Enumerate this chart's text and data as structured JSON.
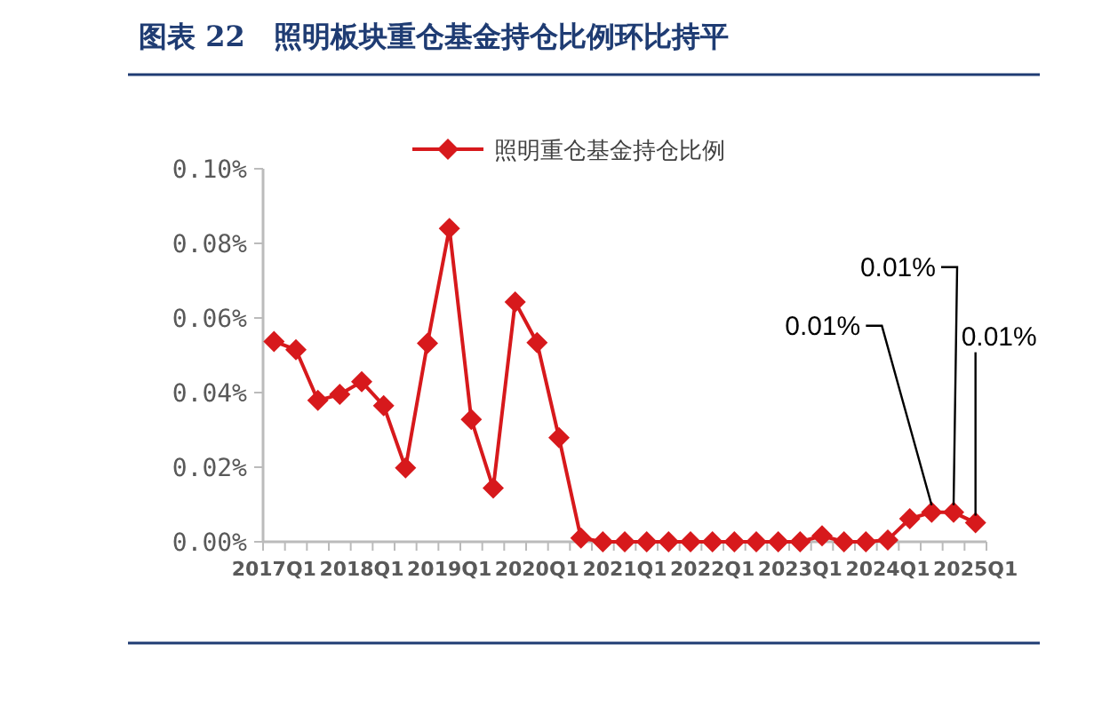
{
  "chart_data": {
    "type": "line",
    "title": "图表 22　照明板块重仓基金持仓比例环比持平",
    "categories": [
      "2017Q1",
      null,
      null,
      null,
      "2018Q1",
      null,
      null,
      null,
      "2019Q1",
      null,
      null,
      null,
      "2020Q1",
      null,
      null,
      null,
      "2021Q1",
      null,
      null,
      null,
      "2022Q1",
      null,
      null,
      null,
      "2023Q1",
      null,
      null,
      null,
      "2024Q1",
      null,
      null,
      null,
      "2025Q1"
    ],
    "series": [
      {
        "name": "照明重仓基金持仓比例",
        "color": "#d7191c",
        "values": [
          0.0537,
          0.0515,
          0.0379,
          0.0395,
          0.0429,
          0.0365,
          0.0198,
          0.0532,
          0.084,
          0.0328,
          0.0144,
          0.0643,
          0.0534,
          0.0279,
          0.001,
          0,
          0,
          0,
          0,
          0,
          0,
          0,
          0,
          0,
          0,
          0.0016,
          0,
          0,
          0.0005,
          0.0062,
          0.0079,
          0.0079,
          0.0051
        ],
        "value_labels": [
          null,
          null,
          null,
          null,
          null,
          null,
          null,
          null,
          null,
          null,
          null,
          null,
          null,
          null,
          null,
          null,
          null,
          null,
          null,
          null,
          null,
          null,
          null,
          null,
          null,
          null,
          null,
          null,
          null,
          null,
          "0.01%",
          "0.01%",
          "0.01%"
        ]
      }
    ],
    "ylim": [
      0,
      0.1
    ],
    "yticks": [
      {
        "value": 0,
        "label": "0.00%"
      },
      {
        "value": 0.02,
        "label": "0.02%"
      },
      {
        "value": 0.04,
        "label": "0.04%"
      },
      {
        "value": 0.06,
        "label": "0.06%"
      },
      {
        "value": 0.08,
        "label": "0.08%"
      },
      {
        "value": 0.1,
        "label": "0.10%"
      }
    ],
    "legend": "top",
    "marker": "diamond",
    "line_style": "solid",
    "grid": false
  }
}
